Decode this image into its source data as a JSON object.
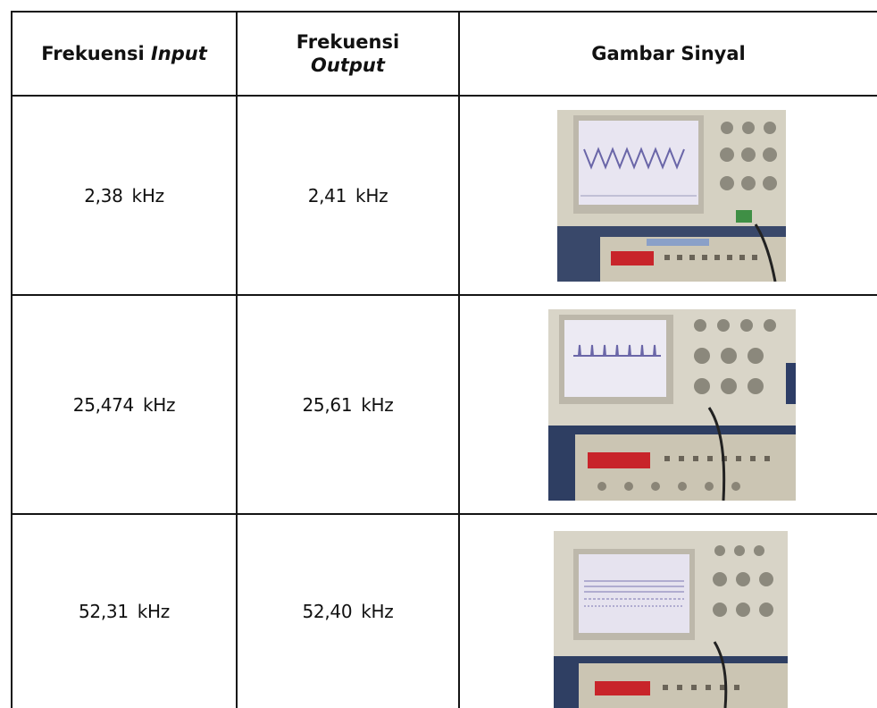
{
  "table": {
    "headers": {
      "input_freq": {
        "prefix": "Frekuensi ",
        "italic": "Input"
      },
      "output_freq": {
        "prefix": "Frekuensi",
        "italic": "Output"
      },
      "signal_image": "Gambar Sinyal"
    },
    "rows": [
      {
        "input_value": "2,38",
        "input_unit": "kHz",
        "output_value": "2,41",
        "output_unit": "kHz",
        "scope_icon": "oscilloscope-photo-icon",
        "trace": "sine"
      },
      {
        "input_value": "25,474",
        "input_unit": "kHz",
        "output_value": "25,61",
        "output_unit": "kHz",
        "scope_icon": "oscilloscope-photo-icon",
        "trace": "pulses"
      },
      {
        "input_value": "52,31",
        "input_unit": "kHz",
        "output_value": "52,40",
        "output_unit": "kHz",
        "scope_icon": "oscilloscope-photo-icon",
        "trace": "dense"
      }
    ]
  },
  "colors": {
    "border": "#141414",
    "scope_body": "#d7d2c4",
    "scope_screen": "#e9e6f2",
    "trace": "#6a66a8",
    "generator_panel": "#cdc7b5",
    "led": "#c8242a"
  }
}
